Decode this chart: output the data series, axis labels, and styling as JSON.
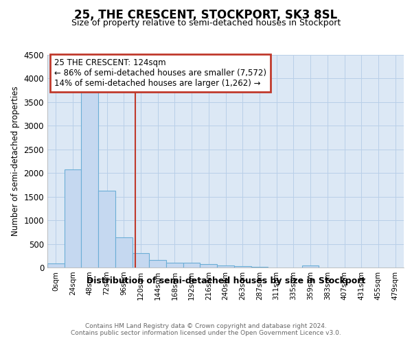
{
  "title": "25, THE CRESCENT, STOCKPORT, SK3 8SL",
  "subtitle": "Size of property relative to semi-detached houses in Stockport",
  "xlabel": "Distribution of semi-detached houses by size in Stockport",
  "ylabel": "Number of semi-detached properties",
  "bin_labels": [
    "0sqm",
    "24sqm",
    "48sqm",
    "72sqm",
    "96sqm",
    "120sqm",
    "144sqm",
    "168sqm",
    "192sqm",
    "216sqm",
    "240sqm",
    "263sqm",
    "287sqm",
    "311sqm",
    "335sqm",
    "359sqm",
    "383sqm",
    "407sqm",
    "431sqm",
    "455sqm",
    "479sqm"
  ],
  "bar_values": [
    90,
    2070,
    3720,
    1620,
    635,
    300,
    155,
    105,
    95,
    70,
    50,
    35,
    20,
    0,
    0,
    45,
    0,
    0,
    0,
    0,
    0
  ],
  "bar_color": "#c5d8f0",
  "bar_edge_color": "#6baed6",
  "property_line_color": "#c0392b",
  "annotation_text": "25 THE CRESCENT: 124sqm\n← 86% of semi-detached houses are smaller (7,572)\n14% of semi-detached houses are larger (1,262) →",
  "annotation_box_color": "#ffffff",
  "annotation_box_edge": "#c0392b",
  "ylim": [
    0,
    4500
  ],
  "yticks": [
    0,
    500,
    1000,
    1500,
    2000,
    2500,
    3000,
    3500,
    4000,
    4500
  ],
  "footer_text": "Contains HM Land Registry data © Crown copyright and database right 2024.\nContains public sector information licensed under the Open Government Licence v3.0.",
  "background_color": "#ffffff",
  "plot_bg_color": "#dce8f5",
  "grid_color": "#b8cfe8"
}
